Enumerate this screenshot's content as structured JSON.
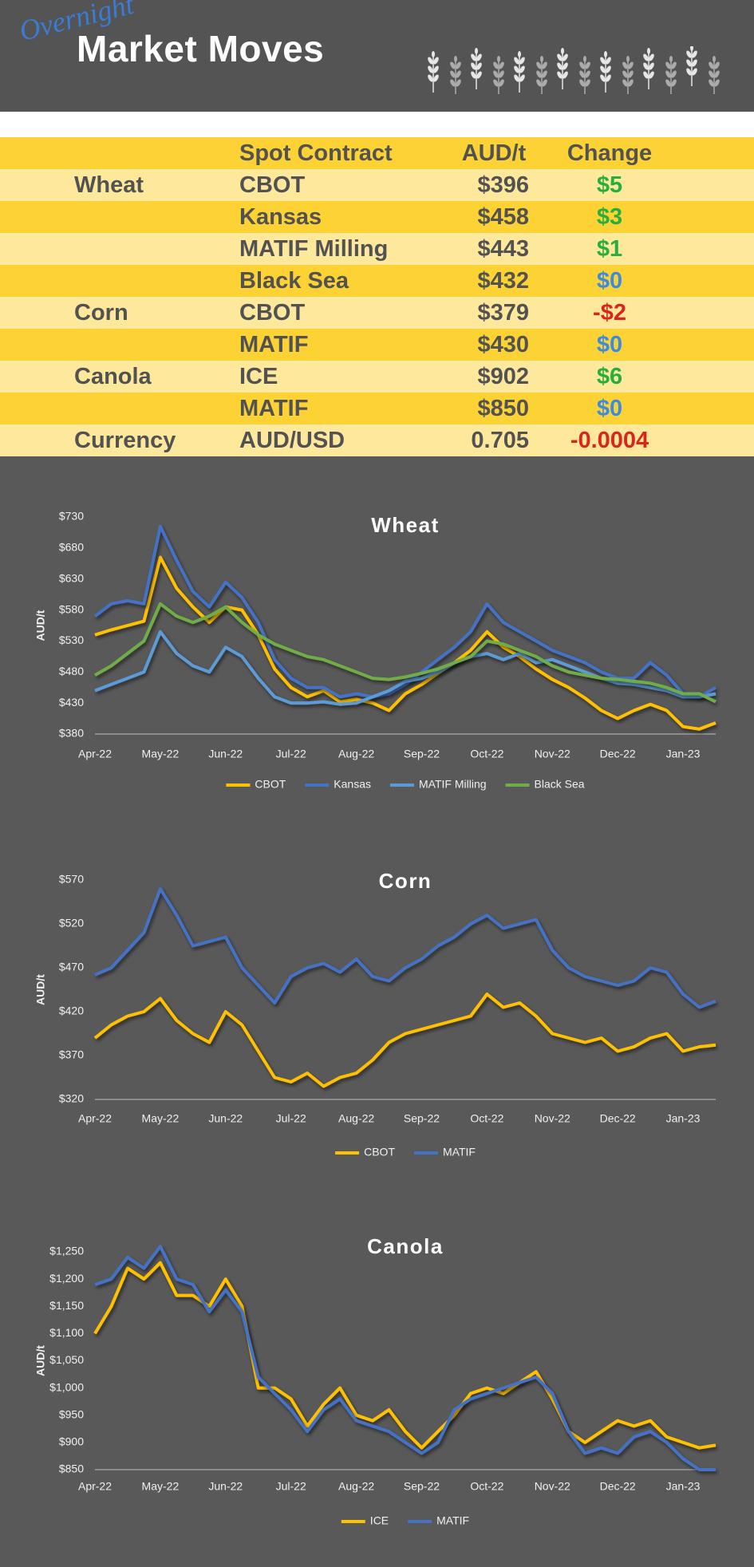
{
  "header": {
    "script_title": "Overnight",
    "title": "Market Moves"
  },
  "table": {
    "columns": [
      "Spot Contract",
      "AUD/t",
      "Change"
    ],
    "rows": [
      {
        "group": "Wheat",
        "contract": "CBOT",
        "price": "$396",
        "change": "$5",
        "change_color": "#27ae3f"
      },
      {
        "contract": "Kansas",
        "price": "$458",
        "change": "$3",
        "change_color": "#27ae3f"
      },
      {
        "contract": "MATIF Milling",
        "price": "$443",
        "change": "$1",
        "change_color": "#27ae3f"
      },
      {
        "contract": "Black Sea",
        "price": "$432",
        "change": "$0",
        "change_color": "#3d8be0"
      },
      {
        "group": "Corn",
        "contract": "CBOT",
        "price": "$379",
        "change": "-$2",
        "change_color": "#d9261c"
      },
      {
        "contract": "MATIF",
        "price": "$430",
        "change": "$0",
        "change_color": "#3d8be0"
      },
      {
        "group": "Canola",
        "contract": "ICE",
        "price": "$902",
        "change": "$6",
        "change_color": "#27ae3f"
      },
      {
        "contract": "MATIF",
        "price": "$850",
        "change": "$0",
        "change_color": "#3d8be0"
      },
      {
        "group": "Currency",
        "contract": "AUD/USD",
        "price": "0.705",
        "change": "-0.0004",
        "change_color": "#d9261c"
      }
    ]
  },
  "chart_data": [
    {
      "type": "line",
      "title": "Wheat",
      "y_label": "AUD/t",
      "categories": [
        "Apr-22",
        null,
        null,
        null,
        "May-22",
        null,
        null,
        null,
        "Jun-22",
        null,
        null,
        null,
        "Jul-22",
        null,
        null,
        null,
        "Aug-22",
        null,
        null,
        null,
        "Sep-22",
        null,
        null,
        null,
        "Oct-22",
        null,
        null,
        null,
        "Nov-22",
        null,
        null,
        null,
        "Dec-22",
        null,
        null,
        null,
        "Jan-23",
        null,
        null
      ],
      "ylim": [
        380,
        730
      ],
      "yticks": [
        {
          "value": 380,
          "label": "$380"
        },
        {
          "value": 430,
          "label": "$430"
        },
        {
          "value": 480,
          "label": "$480"
        },
        {
          "value": 530,
          "label": "$530"
        },
        {
          "value": 580,
          "label": "$580"
        },
        {
          "value": 630,
          "label": "$630"
        },
        {
          "value": 680,
          "label": "$680"
        },
        {
          "value": 730,
          "label": "$730"
        }
      ],
      "legend": "bottom",
      "series": [
        {
          "name": "CBOT",
          "color": "#ffc000",
          "values": [
            540,
            548,
            555,
            562,
            665,
            615,
            585,
            560,
            585,
            580,
            540,
            485,
            455,
            440,
            450,
            432,
            436,
            430,
            418,
            445,
            460,
            478,
            495,
            515,
            545,
            520,
            505,
            485,
            468,
            455,
            438,
            418,
            405,
            418,
            428,
            418,
            392,
            388,
            398
          ]
        },
        {
          "name": "Kansas",
          "color": "#4472c4",
          "values": [
            570,
            590,
            595,
            590,
            715,
            660,
            610,
            585,
            625,
            600,
            560,
            500,
            470,
            455,
            455,
            440,
            445,
            440,
            445,
            460,
            480,
            500,
            520,
            545,
            590,
            560,
            545,
            530,
            515,
            505,
            495,
            480,
            470,
            470,
            495,
            475,
            445,
            440,
            455
          ]
        },
        {
          "name": "MATIF Milling",
          "color": "#5b9bd5",
          "values": [
            450,
            460,
            470,
            480,
            545,
            510,
            490,
            480,
            520,
            505,
            470,
            440,
            430,
            430,
            432,
            428,
            430,
            440,
            450,
            465,
            470,
            480,
            495,
            505,
            510,
            500,
            510,
            495,
            500,
            490,
            480,
            470,
            462,
            460,
            455,
            450,
            440,
            440,
            445
          ]
        },
        {
          "name": "Black Sea",
          "color": "#70ad47",
          "values": [
            475,
            490,
            510,
            530,
            590,
            570,
            560,
            570,
            585,
            560,
            540,
            525,
            515,
            505,
            500,
            490,
            480,
            470,
            468,
            472,
            478,
            485,
            495,
            505,
            530,
            525,
            515,
            505,
            490,
            480,
            475,
            470,
            468,
            465,
            462,
            455,
            445,
            445,
            432
          ]
        }
      ]
    },
    {
      "type": "line",
      "title": "Corn",
      "y_label": "AUD/t",
      "categories": [
        "Apr-22",
        null,
        null,
        null,
        "May-22",
        null,
        null,
        null,
        "Jun-22",
        null,
        null,
        null,
        "Jul-22",
        null,
        null,
        null,
        "Aug-22",
        null,
        null,
        null,
        "Sep-22",
        null,
        null,
        null,
        "Oct-22",
        null,
        null,
        null,
        "Nov-22",
        null,
        null,
        null,
        "Dec-22",
        null,
        null,
        null,
        "Jan-23",
        null,
        null
      ],
      "ylim": [
        320,
        570
      ],
      "yticks": [
        {
          "value": 320,
          "label": "$320"
        },
        {
          "value": 370,
          "label": "$370"
        },
        {
          "value": 420,
          "label": "$420"
        },
        {
          "value": 470,
          "label": "$470"
        },
        {
          "value": 520,
          "label": "$520"
        },
        {
          "value": 570,
          "label": "$570"
        }
      ],
      "legend": "bottom",
      "series": [
        {
          "name": "CBOT",
          "color": "#ffc000",
          "values": [
            390,
            405,
            415,
            420,
            435,
            410,
            395,
            385,
            420,
            405,
            375,
            345,
            340,
            350,
            335,
            345,
            350,
            365,
            385,
            395,
            400,
            405,
            410,
            415,
            440,
            425,
            430,
            415,
            395,
            390,
            385,
            390,
            375,
            380,
            390,
            395,
            375,
            380,
            382
          ]
        },
        {
          "name": "MATIF",
          "color": "#4472c4",
          "values": [
            462,
            470,
            490,
            510,
            560,
            530,
            495,
            500,
            505,
            470,
            450,
            430,
            460,
            470,
            475,
            465,
            480,
            460,
            455,
            470,
            480,
            495,
            505,
            520,
            530,
            515,
            520,
            525,
            490,
            470,
            460,
            455,
            450,
            455,
            470,
            465,
            440,
            425,
            432
          ]
        }
      ]
    },
    {
      "type": "line",
      "title": "Canola",
      "y_label": "AUD/t",
      "categories": [
        "Apr-22",
        null,
        null,
        null,
        "May-22",
        null,
        null,
        null,
        "Jun-22",
        null,
        null,
        null,
        "Jul-22",
        null,
        null,
        null,
        "Aug-22",
        null,
        null,
        null,
        "Sep-22",
        null,
        null,
        null,
        "Oct-22",
        null,
        null,
        null,
        "Nov-22",
        null,
        null,
        null,
        "Dec-22",
        null,
        null,
        null,
        "Jan-23",
        null,
        null
      ],
      "ylim": [
        850,
        1250
      ],
      "yticks": [
        {
          "value": 850,
          "label": "$850"
        },
        {
          "value": 900,
          "label": "$900"
        },
        {
          "value": 950,
          "label": "$950"
        },
        {
          "value": 1000,
          "label": "$1,000"
        },
        {
          "value": 1050,
          "label": "$1,050"
        },
        {
          "value": 1100,
          "label": "$1,100"
        },
        {
          "value": 1150,
          "label": "$1,150"
        },
        {
          "value": 1200,
          "label": "$1,200"
        },
        {
          "value": 1250,
          "label": "$1,250"
        }
      ],
      "legend": "bottom",
      "series": [
        {
          "name": "ICE",
          "color": "#ffc000",
          "values": [
            1100,
            1150,
            1220,
            1200,
            1230,
            1170,
            1170,
            1150,
            1200,
            1150,
            1000,
            1000,
            980,
            930,
            970,
            1000,
            950,
            940,
            960,
            920,
            890,
            920,
            950,
            990,
            1000,
            990,
            1010,
            1030,
            980,
            920,
            900,
            920,
            940,
            930,
            940,
            910,
            900,
            890,
            895
          ]
        },
        {
          "name": "MATIF",
          "color": "#4472c4",
          "values": [
            1190,
            1200,
            1240,
            1220,
            1260,
            1200,
            1190,
            1140,
            1180,
            1140,
            1020,
            990,
            960,
            920,
            960,
            980,
            940,
            930,
            920,
            900,
            880,
            900,
            960,
            980,
            990,
            1000,
            1010,
            1020,
            990,
            920,
            880,
            890,
            880,
            910,
            920,
            900,
            870,
            850,
            850
          ]
        }
      ]
    }
  ]
}
